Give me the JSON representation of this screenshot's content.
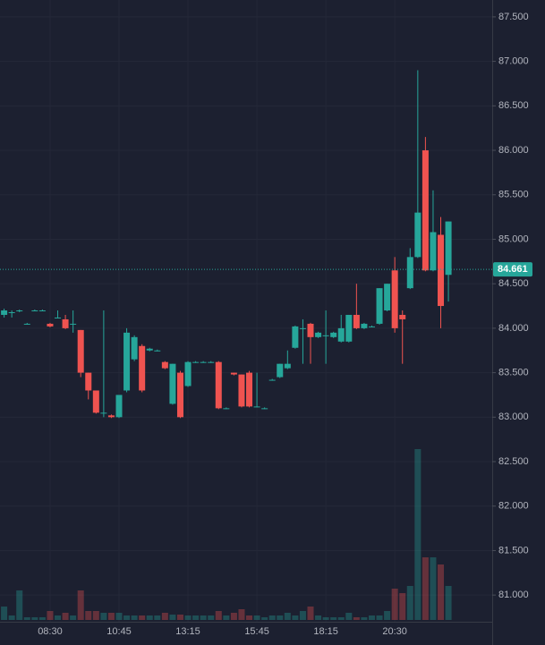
{
  "chart_data": {
    "type": "candlestick",
    "categories": [
      null,
      null,
      null,
      null,
      null,
      null,
      "08:30",
      null,
      null,
      null,
      null,
      null,
      null,
      null,
      null,
      "10:45",
      null,
      null,
      null,
      null,
      null,
      null,
      null,
      null,
      "13:15",
      null,
      null,
      null,
      null,
      null,
      null,
      null,
      null,
      "15:45",
      null,
      null,
      null,
      null,
      null,
      null,
      null,
      null,
      "18:15",
      null,
      null,
      null,
      null,
      null,
      null,
      null,
      null,
      "20:30",
      null,
      null,
      null,
      null,
      null,
      null,
      null
    ],
    "open": [
      84.15,
      84.18,
      84.19,
      84.05,
      84.2,
      84.2,
      84.05,
      84.12,
      84.1,
      84.05,
      83.98,
      83.5,
      83.3,
      83.05,
      83.02,
      83.0,
      83.3,
      83.65,
      83.8,
      83.75,
      83.75,
      83.62,
      83.15,
      83.5,
      83.35,
      83.62,
      83.62,
      83.62,
      83.62,
      83.1,
      83.5,
      83.48,
      83.5,
      83.12,
      83.1,
      83.42,
      83.45,
      83.55,
      83.78,
      84.0,
      84.05,
      83.9,
      83.92,
      83.9,
      83.85,
      83.85,
      84.15,
      84.0,
      84.02,
      84.05,
      84.2,
      84.65,
      84.15,
      84.45,
      84.8,
      86.0,
      84.65,
      85.05,
      84.6
    ],
    "high": [
      84.22,
      84.2,
      84.21,
      84.06,
      84.21,
      84.21,
      84.06,
      84.2,
      84.15,
      84.2,
      83.98,
      83.5,
      83.3,
      84.2,
      83.03,
      83.25,
      84.0,
      83.92,
      83.82,
      83.78,
      83.76,
      83.63,
      83.6,
      83.52,
      83.63,
      83.63,
      83.63,
      83.63,
      83.63,
      83.11,
      83.5,
      83.48,
      83.52,
      83.5,
      83.11,
      83.43,
      83.6,
      83.75,
      84.03,
      84.1,
      84.06,
      83.96,
      84.2,
      83.96,
      84.15,
      84.15,
      84.5,
      84.06,
      84.03,
      84.45,
      84.5,
      84.8,
      84.2,
      84.9,
      86.9,
      86.15,
      85.55,
      85.25,
      85.2
    ],
    "low": [
      84.12,
      84.12,
      84.18,
      84.04,
      84.19,
      84.19,
      84.01,
      84.11,
      83.99,
      83.95,
      83.45,
      83.2,
      83.04,
      83.0,
      82.99,
      82.99,
      83.28,
      83.63,
      83.28,
      83.74,
      83.74,
      83.54,
      83.14,
      82.99,
      83.34,
      83.61,
      83.61,
      83.61,
      83.09,
      83.09,
      83.47,
      83.11,
      83.11,
      83.11,
      83.09,
      83.41,
      83.44,
      83.54,
      83.77,
      83.6,
      83.6,
      83.89,
      83.6,
      83.89,
      83.84,
      83.84,
      83.99,
      83.99,
      84.01,
      84.04,
      84.19,
      83.95,
      83.6,
      84.44,
      84.79,
      84.64,
      84.64,
      84.0,
      84.3
    ],
    "close": [
      84.2,
      84.18,
      84.2,
      84.05,
      84.2,
      84.2,
      84.02,
      84.12,
      84.0,
      84.05,
      83.5,
      83.3,
      83.05,
      83.05,
      83.0,
      83.25,
      83.95,
      83.9,
      83.3,
      83.77,
      83.75,
      83.55,
      83.6,
      83.0,
      83.62,
      83.62,
      83.62,
      83.62,
      83.1,
      83.1,
      83.48,
      83.12,
      83.12,
      83.12,
      83.1,
      83.42,
      83.6,
      83.6,
      84.02,
      84.0,
      83.9,
      83.95,
      83.92,
      83.95,
      84.0,
      84.15,
      84.0,
      84.05,
      84.02,
      84.45,
      84.5,
      84.0,
      84.1,
      84.8,
      85.3,
      84.65,
      85.08,
      84.25,
      85.2
    ],
    "volume": [
      15,
      5,
      33,
      3,
      3,
      3,
      10,
      5,
      8,
      5,
      33,
      10,
      10,
      8,
      8,
      8,
      5,
      5,
      5,
      5,
      5,
      8,
      6,
      6,
      5,
      5,
      5,
      5,
      10,
      5,
      8,
      12,
      5,
      5,
      3,
      5,
      5,
      8,
      5,
      10,
      15,
      5,
      3,
      3,
      3,
      8,
      3,
      3,
      5,
      5,
      10,
      35,
      30,
      38,
      191,
      70,
      70,
      62,
      38
    ],
    "up_color": "#26a69a",
    "down_color": "#ef5350",
    "ylim": [
      80.7,
      87.69
    ],
    "yticks": [
      {
        "value": 81,
        "label": "81.000"
      },
      {
        "value": 81.5,
        "label": "81.500"
      },
      {
        "value": 82,
        "label": "82.000"
      },
      {
        "value": 82.5,
        "label": "82.500"
      },
      {
        "value": 83,
        "label": "83.000"
      },
      {
        "value": 83.5,
        "label": "83.500"
      },
      {
        "value": 84,
        "label": "84.000"
      },
      {
        "value": 84.5,
        "label": "84.500"
      },
      {
        "value": 85,
        "label": "85.000"
      },
      {
        "value": 85.5,
        "label": "85.500"
      },
      {
        "value": 86,
        "label": "86.000"
      },
      {
        "value": 86.5,
        "label": "86.500"
      },
      {
        "value": 87,
        "label": "87.000"
      },
      {
        "value": 87.5,
        "label": "87.500"
      }
    ],
    "volume_ylim": [
      0,
      200
    ],
    "last_price": 84.661,
    "grid": true
  }
}
